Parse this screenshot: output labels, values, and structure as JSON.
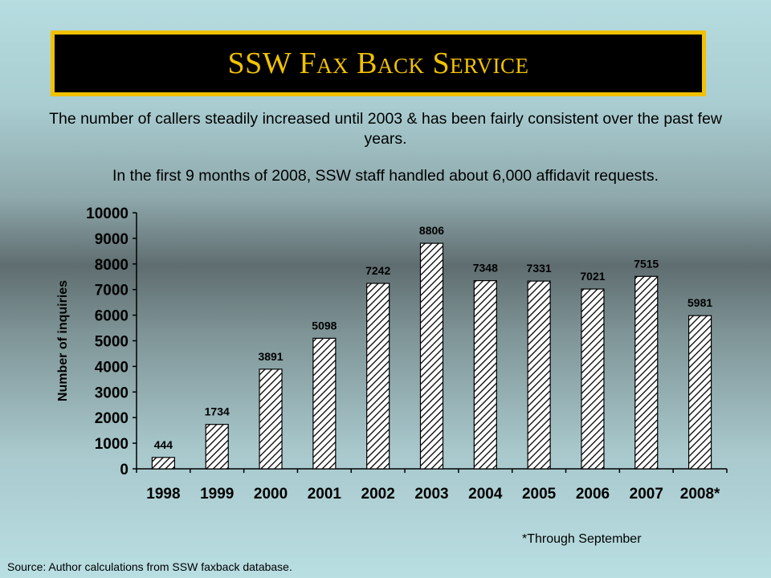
{
  "page": {
    "title": "SSW Fax Back Service",
    "description_1": "The number of callers steadily increased until 2003 & has been fairly consistent over the past few years.",
    "description_2": "In the first 9 months of 2008, SSW staff handled about 6,000 affidavit requests.",
    "footnote": "*Through September",
    "source": "Source: Author calculations from SSW faxback database."
  },
  "colors": {
    "title_bg": "#000000",
    "title_border": "#f2c200",
    "title_text": "#f2c200",
    "bar_fill": "#ffffff",
    "bar_hatch": "#000000"
  },
  "chart_data": {
    "type": "bar",
    "categories": [
      "1998",
      "1999",
      "2000",
      "2001",
      "2002",
      "2003",
      "2004",
      "2005",
      "2006",
      "2007",
      "2008*"
    ],
    "values": [
      444,
      1734,
      3891,
      5098,
      7242,
      8806,
      7348,
      7331,
      7021,
      7515,
      5981
    ],
    "data_labels": [
      "444",
      "1734",
      "3891",
      "5098",
      "7242",
      "8806",
      "7348",
      "7331",
      "7021",
      "7515",
      "5981"
    ],
    "ylabel": "Number of inquiries",
    "xlabel": "",
    "ylim": [
      0,
      10000
    ],
    "yticks": [
      "0",
      "1000",
      "2000",
      "3000",
      "4000",
      "5000",
      "6000",
      "7000",
      "8000",
      "9000",
      "10000"
    ],
    "grid": false,
    "bar_pattern": "diagonal-hatch"
  }
}
